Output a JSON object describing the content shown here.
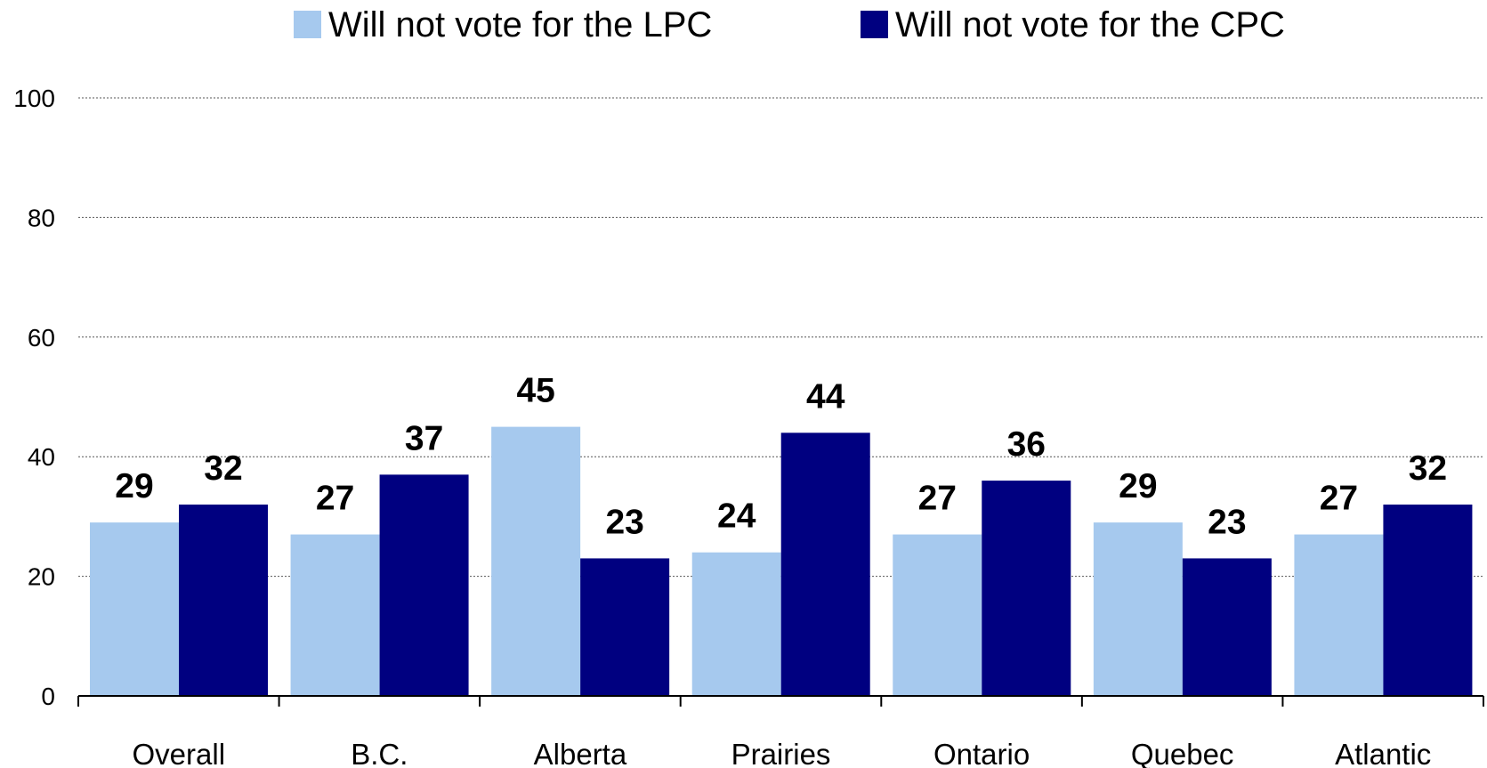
{
  "chart_data": {
    "type": "bar",
    "title": "",
    "xlabel": "",
    "ylabel": "",
    "categories": [
      "Overall",
      "B.C.",
      "Alberta",
      "Prairies",
      "Ontario",
      "Quebec",
      "Atlantic"
    ],
    "series": [
      {
        "name": "Will not vote for the LPC",
        "color": "#a6c9ee",
        "values": [
          29,
          27,
          45,
          24,
          27,
          29,
          27
        ]
      },
      {
        "name": "Will not vote for the CPC",
        "color": "#000080",
        "values": [
          32,
          37,
          23,
          44,
          36,
          23,
          32
        ]
      }
    ],
    "ylim": [
      0,
      100
    ],
    "yticks": [
      0,
      20,
      40,
      60,
      80,
      100
    ],
    "grid": true,
    "legend_position": "top-center",
    "data_labels": true
  }
}
